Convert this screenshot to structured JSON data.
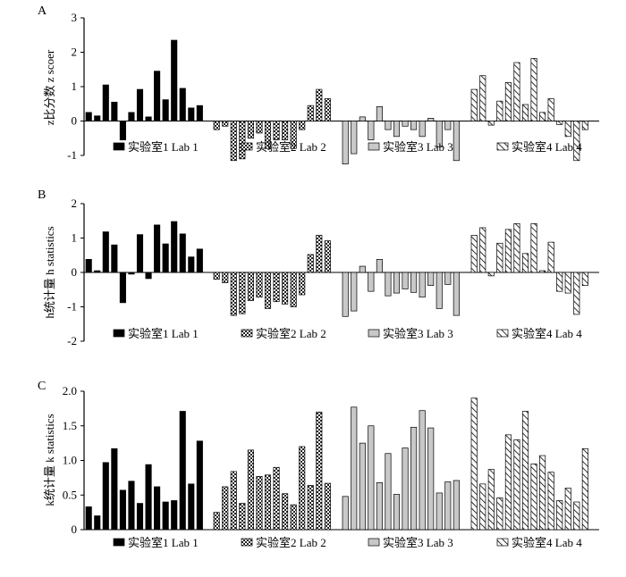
{
  "colors": {
    "lab1": "#000000",
    "lab2": "#555555",
    "lab3": "#c8c8c8",
    "lab4": "#ffffff",
    "axis": "#000000"
  },
  "legend": [
    {
      "key": "lab1",
      "label": "实验室1  Lab 1",
      "pattern": "solid"
    },
    {
      "key": "lab2",
      "label": "实验室2  Lab 2",
      "pattern": "checker"
    },
    {
      "key": "lab3",
      "label": "实验室3  Lab 3",
      "pattern": "light-gray"
    },
    {
      "key": "lab4",
      "label": "实验室4  Lab 4",
      "pattern": "diagonal-hatch"
    }
  ],
  "chart_data": [
    {
      "panel": "A",
      "type": "bar",
      "ylabel": "z比分数  z scoer",
      "ylim": [
        -1,
        3
      ],
      "yticks": [
        "-1",
        "0",
        "1",
        "2",
        "3"
      ],
      "series": [
        {
          "name": "实验室1  Lab 1",
          "values": [
            0.25,
            0.15,
            1.05,
            0.55,
            -0.55,
            0.25,
            0.92,
            0.12,
            1.45,
            0.62,
            2.35,
            0.95,
            0.38,
            0.45
          ]
        },
        {
          "name": "实验室2  Lab 2",
          "values": [
            -0.25,
            -0.15,
            -1.15,
            -1.1,
            -0.5,
            -0.35,
            -0.8,
            -0.55,
            -0.55,
            -0.8,
            -0.25,
            0.45,
            0.92,
            0.65
          ]
        },
        {
          "name": "实验室3  Lab 3",
          "values": [
            -1.25,
            -0.95,
            0.12,
            -0.55,
            0.42,
            -0.25,
            -0.45,
            -0.15,
            -0.25,
            -0.45,
            0.08,
            -0.75,
            -0.25,
            -1.15
          ]
        },
        {
          "name": "实验室4  Lab 4",
          "values": [
            0.92,
            1.32,
            -0.12,
            0.58,
            1.12,
            1.7,
            0.48,
            1.82,
            0.25,
            0.65,
            -0.1,
            -0.45,
            -1.15,
            -0.25
          ]
        }
      ]
    },
    {
      "panel": "B",
      "type": "bar",
      "ylabel": "h统计量  h statistics",
      "ylim": [
        -2,
        2
      ],
      "yticks": [
        "-2",
        "-1",
        "0",
        "1",
        "2"
      ],
      "series": [
        {
          "name": "实验室1  Lab 1",
          "values": [
            0.38,
            0.05,
            1.18,
            0.8,
            -0.88,
            -0.05,
            1.1,
            -0.18,
            1.38,
            0.83,
            1.48,
            1.12,
            0.45,
            0.68
          ]
        },
        {
          "name": "实验室2  Lab 2",
          "values": [
            -0.2,
            -0.3,
            -1.25,
            -1.2,
            -0.82,
            -0.72,
            -1.05,
            -0.85,
            -0.92,
            -1.0,
            -0.65,
            0.52,
            1.08,
            0.92
          ]
        },
        {
          "name": "实验室3  Lab 3",
          "values": [
            -1.28,
            -1.12,
            0.18,
            -0.55,
            0.38,
            -0.68,
            -0.6,
            -0.48,
            -0.58,
            -0.72,
            -0.38,
            -1.05,
            -0.35,
            -1.25
          ]
        },
        {
          "name": "实验室4  Lab 4",
          "values": [
            1.08,
            1.3,
            -0.1,
            0.85,
            1.25,
            1.42,
            0.55,
            1.42,
            0.05,
            0.88,
            -0.55,
            -0.6,
            -1.22,
            -0.38
          ]
        }
      ]
    },
    {
      "panel": "C",
      "type": "bar",
      "ylabel": "k统计量  k statistics",
      "ylim": [
        0,
        2.0
      ],
      "yticks": [
        "0",
        "0.5",
        "1.0",
        "1.5",
        "2.0"
      ],
      "series": [
        {
          "name": "实验室1  Lab 1",
          "values": [
            0.33,
            0.2,
            0.97,
            1.17,
            0.57,
            0.7,
            0.38,
            0.94,
            0.62,
            0.4,
            0.42,
            1.71,
            0.66,
            1.28
          ]
        },
        {
          "name": "实验室2  Lab 2",
          "values": [
            0.25,
            0.62,
            0.84,
            0.38,
            1.15,
            0.77,
            0.79,
            0.9,
            0.52,
            0.36,
            1.2,
            0.64,
            1.7,
            0.67
          ]
        },
        {
          "name": "实验室3  Lab 3",
          "values": [
            0.48,
            1.77,
            1.25,
            1.5,
            0.68,
            1.1,
            0.51,
            1.18,
            1.48,
            1.72,
            1.47,
            0.53,
            0.69,
            0.71
          ]
        },
        {
          "name": "实验室4  Lab 4",
          "values": [
            1.9,
            0.66,
            0.87,
            0.46,
            1.37,
            1.3,
            1.71,
            0.95,
            1.07,
            0.83,
            0.42,
            0.6,
            0.4,
            1.17
          ]
        }
      ]
    }
  ]
}
